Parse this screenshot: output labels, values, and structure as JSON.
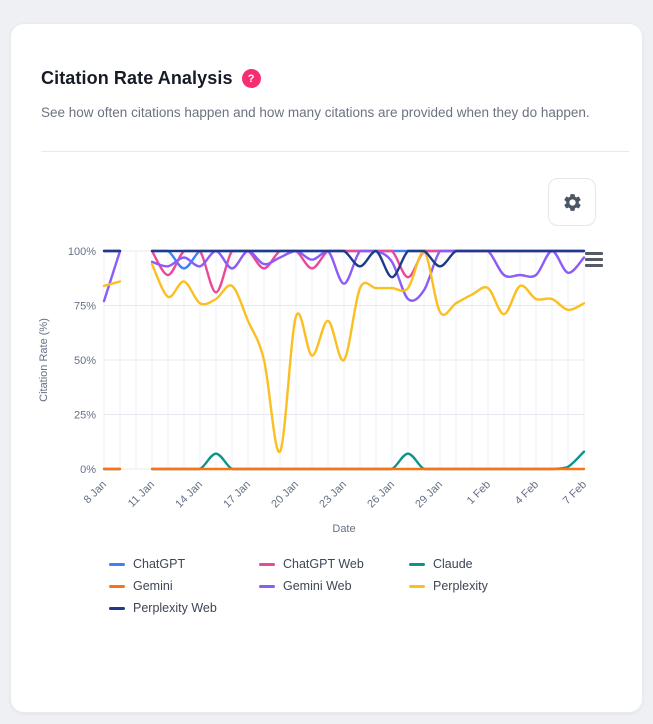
{
  "page": {
    "background": "#eef0f4",
    "card_background": "#ffffff"
  },
  "header": {
    "title": "Citation Rate Analysis",
    "help_icon": "?",
    "help_color": "#f72c71",
    "subtitle": "See how often citations happen and how many citations are provided when they do happen."
  },
  "toolbar": {
    "settings_icon": "gear"
  },
  "chart": {
    "menu_icon": "hamburger",
    "y_axis": {
      "title": "Citation Rate (%)",
      "ticks": [
        "100%",
        "75%",
        "50%",
        "25%",
        "0%"
      ]
    },
    "x_axis": {
      "title": "Date",
      "tick_labels": [
        "8 Jan",
        "11 Jan",
        "14 Jan",
        "17 Jan",
        "20 Jan",
        "23 Jan",
        "26 Jan",
        "29 Jan",
        "1 Feb",
        "4 Feb",
        "7 Feb"
      ]
    },
    "grid_color_h": "#e5e8ee",
    "grid_color_v": "#eef0f4"
  },
  "chart_data": {
    "type": "line",
    "title": "Citation Rate Analysis",
    "xlabel": "Date",
    "ylabel": "Citation Rate (%)",
    "ylim": [
      0,
      100
    ],
    "grid": true,
    "legend_position": "bottom",
    "note": "null = missing data gap on 10 Jan",
    "x": [
      "8 Jan",
      "9 Jan",
      "10 Jan",
      "11 Jan",
      "12 Jan",
      "13 Jan",
      "14 Jan",
      "15 Jan",
      "16 Jan",
      "17 Jan",
      "18 Jan",
      "19 Jan",
      "20 Jan",
      "21 Jan",
      "22 Jan",
      "23 Jan",
      "24 Jan",
      "25 Jan",
      "26 Jan",
      "27 Jan",
      "28 Jan",
      "29 Jan",
      "30 Jan",
      "31 Jan",
      "1 Feb",
      "2 Feb",
      "3 Feb",
      "4 Feb",
      "5 Feb",
      "6 Feb",
      "7 Feb"
    ],
    "series": [
      {
        "name": "ChatGPT",
        "color": "#3b82f6",
        "values": [
          100,
          100,
          null,
          100,
          100,
          92,
          100,
          100,
          100,
          100,
          100,
          100,
          100,
          100,
          100,
          100,
          100,
          100,
          100,
          100,
          100,
          100,
          100,
          100,
          100,
          100,
          100,
          100,
          100,
          100,
          100
        ]
      },
      {
        "name": "ChatGPT Web",
        "color": "#ec4899",
        "values": [
          100,
          100,
          null,
          100,
          89,
          100,
          100,
          81,
          100,
          100,
          92,
          100,
          100,
          92,
          100,
          100,
          100,
          100,
          100,
          88,
          100,
          100,
          100,
          100,
          100,
          100,
          100,
          100,
          100,
          100,
          100
        ]
      },
      {
        "name": "Claude",
        "color": "#0d9488",
        "values": [
          0,
          0,
          null,
          0,
          0,
          0,
          0,
          7,
          0,
          0,
          0,
          0,
          0,
          0,
          0,
          0,
          0,
          0,
          0,
          7,
          0,
          0,
          0,
          0,
          0,
          0,
          0,
          0,
          0,
          1,
          8
        ]
      },
      {
        "name": "Gemini",
        "color": "#f97316",
        "values": [
          0,
          0,
          null,
          0,
          0,
          0,
          0,
          0,
          0,
          0,
          0,
          0,
          0,
          0,
          0,
          0,
          0,
          0,
          0,
          0,
          0,
          0,
          0,
          0,
          0,
          0,
          0,
          0,
          0,
          0,
          0
        ]
      },
      {
        "name": "Gemini Web",
        "color": "#8b5cf6",
        "values": [
          77,
          100,
          null,
          95,
          93,
          97,
          93,
          100,
          92,
          100,
          94,
          97,
          100,
          96,
          100,
          85,
          100,
          100,
          95,
          78,
          82,
          100,
          100,
          100,
          100,
          89,
          89,
          89,
          100,
          90,
          97
        ]
      },
      {
        "name": "Perplexity",
        "color": "#fbbf24",
        "values": [
          84,
          86,
          null,
          94,
          79,
          86,
          76,
          78,
          84,
          68,
          50,
          8,
          70,
          52,
          68,
          50,
          83,
          83,
          83,
          83,
          100,
          72,
          76,
          80,
          83,
          71,
          84,
          78,
          78,
          73,
          76
        ]
      },
      {
        "name": "Perplexity Web",
        "color": "#1e3a8a",
        "values": [
          100,
          100,
          null,
          100,
          100,
          100,
          100,
          100,
          100,
          100,
          100,
          100,
          100,
          100,
          100,
          100,
          93,
          100,
          88,
          100,
          100,
          93,
          100,
          100,
          100,
          100,
          100,
          100,
          100,
          100,
          100
        ]
      }
    ]
  }
}
